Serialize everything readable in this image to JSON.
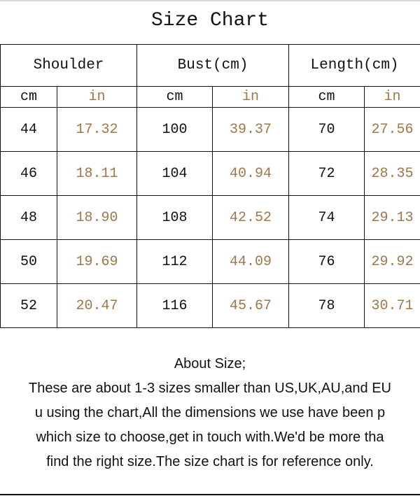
{
  "title": "Size Chart",
  "table": {
    "groups": [
      "Shoulder",
      "Bust(cm)",
      "Length(cm)"
    ],
    "units": [
      "cm",
      "in",
      "cm",
      "in",
      "cm",
      "in"
    ],
    "rows": [
      [
        "44",
        "17.32",
        "100",
        "39.37",
        "70",
        "27.56"
      ],
      [
        "46",
        "18.11",
        "104",
        "40.94",
        "72",
        "28.35"
      ],
      [
        "48",
        "18.90",
        "108",
        "42.52",
        "74",
        "29.13"
      ],
      [
        "50",
        "19.69",
        "112",
        "44.09",
        "76",
        "29.92"
      ],
      [
        "52",
        "20.47",
        "116",
        "45.67",
        "78",
        "30.71"
      ]
    ]
  },
  "colors": {
    "inch_text": "#a0774a",
    "cm_text": "#111111",
    "border": "#111111"
  },
  "notes": {
    "heading": "About Size;",
    "lines": [
      "These are about 1-3 sizes smaller than US,UK,AU,and EU",
      "u using the chart,All the dimensions we use have been p",
      "which size to choose,get in touch with.We'd be more tha",
      "find the right size.The size chart is for reference only."
    ]
  }
}
